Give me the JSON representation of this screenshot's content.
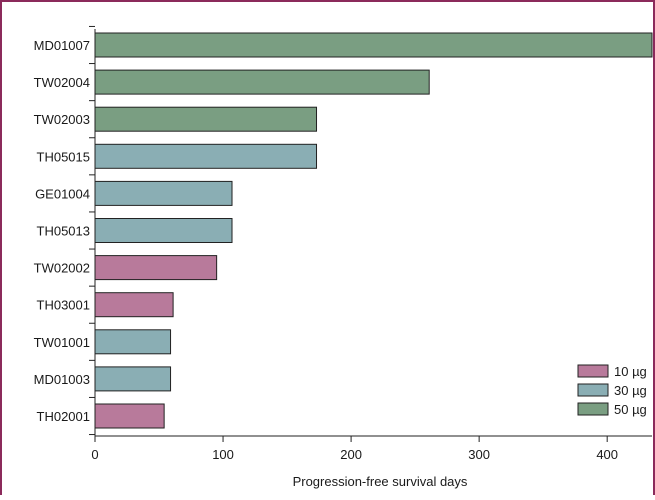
{
  "chart_data": {
    "type": "bar",
    "orientation": "horizontal",
    "xlabel": "Progression-free survival days",
    "ylabel": "",
    "title": "",
    "xlim": [
      0,
      435
    ],
    "xticks": [
      0,
      100,
      200,
      300,
      400
    ],
    "grid": false,
    "legend_position": "bottom-right",
    "groups": [
      {
        "label": "10 µg",
        "color": "#b87a9b"
      },
      {
        "label": "30 µg",
        "color": "#8aaeb4"
      },
      {
        "label": "50 µg",
        "color": "#7a9e82"
      }
    ],
    "bars": [
      {
        "category": "MD01007",
        "value": 435,
        "group": 2
      },
      {
        "category": "TW02004",
        "value": 261,
        "group": 2
      },
      {
        "category": "TW02003",
        "value": 173,
        "group": 2
      },
      {
        "category": "TH05015",
        "value": 173,
        "group": 1
      },
      {
        "category": "GE01004",
        "value": 107,
        "group": 1
      },
      {
        "category": "TH05013",
        "value": 107,
        "group": 1
      },
      {
        "category": "TW02002",
        "value": 95,
        "group": 0
      },
      {
        "category": "TH03001",
        "value": 61,
        "group": 0
      },
      {
        "category": "TW01001",
        "value": 59,
        "group": 1
      },
      {
        "category": "MD01003",
        "value": 59,
        "group": 1
      },
      {
        "category": "TH02001",
        "value": 54,
        "group": 0
      }
    ]
  }
}
